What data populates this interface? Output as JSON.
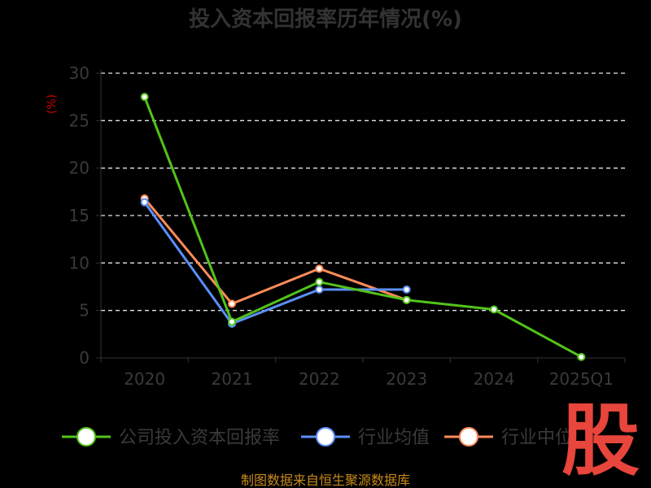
{
  "chart_data": {
    "type": "line",
    "title": "投入资本回报率历年情况(%)",
    "ylabel": "(%)",
    "categories": [
      "2020",
      "2021",
      "2022",
      "2023",
      "2024",
      "2025Q1"
    ],
    "ylim": [
      0,
      30
    ],
    "yticks": [
      0,
      5,
      10,
      15,
      20,
      25,
      30
    ],
    "grid": true,
    "legend_position": "bottom",
    "series": [
      {
        "name": "公司投入资本回报率",
        "color": "#52c41a",
        "values": [
          27.5,
          3.8,
          8.0,
          6.1,
          5.1,
          0.1
        ]
      },
      {
        "name": "行业均值",
        "color": "#5b8ff9",
        "values": [
          16.4,
          3.6,
          7.2,
          7.2,
          null,
          null
        ]
      },
      {
        "name": "行业中位",
        "color": "#ff8c5a",
        "values": [
          16.8,
          5.7,
          9.4,
          6.1,
          null,
          null
        ]
      }
    ]
  },
  "footer": {
    "source": "制图数据来自恒生聚源数据库"
  },
  "watermark": {
    "text": "股"
  }
}
